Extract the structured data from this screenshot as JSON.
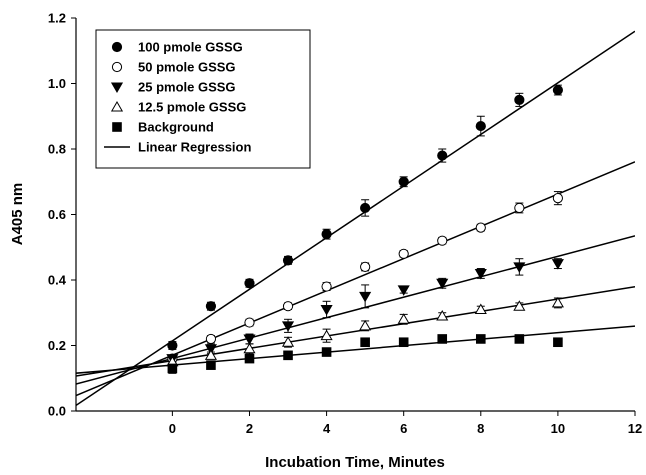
{
  "chart_data": {
    "type": "scatter",
    "xlabel": "Incubation Time, Minutes",
    "ylabel": "A405 nm",
    "xlim": [
      -2.5,
      12
    ],
    "ylim": [
      0.0,
      1.2
    ],
    "xticks": [
      "0",
      "2",
      "4",
      "6",
      "8",
      "10",
      "12"
    ],
    "xtick_values": [
      0,
      2,
      4,
      6,
      8,
      10,
      12
    ],
    "yticks": [
      "0.0",
      "0.2",
      "0.4",
      "0.6",
      "0.8",
      "1.0",
      "1.2"
    ],
    "ytick_values": [
      0.0,
      0.2,
      0.4,
      0.6,
      0.8,
      1.0,
      1.2
    ],
    "grid": false,
    "legend_position": "top-left",
    "x": [
      0,
      1,
      2,
      3,
      4,
      5,
      6,
      7,
      8,
      9,
      10
    ],
    "series": [
      {
        "name": "100 pmole GSSG",
        "marker": "circle-filled",
        "values": [
          0.2,
          0.32,
          0.39,
          0.46,
          0.54,
          0.62,
          0.7,
          0.78,
          0.87,
          0.95,
          0.98
        ],
        "errors": [
          0.012,
          0.012,
          0.012,
          0.012,
          0.015,
          0.025,
          0.015,
          0.02,
          0.03,
          0.02,
          0.015
        ],
        "fit": {
          "slope": 0.0788,
          "intercept": 0.2141
        }
      },
      {
        "name": "50 pmole GSSG",
        "marker": "circle-open",
        "values": [
          0.16,
          0.22,
          0.27,
          0.32,
          0.38,
          0.44,
          0.48,
          0.52,
          0.56,
          0.62,
          0.65
        ],
        "errors": [
          0.01,
          0.01,
          0.01,
          0.01,
          0.012,
          0.012,
          0.01,
          0.01,
          0.01,
          0.015,
          0.02
        ],
        "fit": {
          "slope": 0.0492,
          "intercept": 0.1703
        }
      },
      {
        "name": "25 pmole GSSG",
        "marker": "triangle-down-filled",
        "values": [
          0.16,
          0.19,
          0.22,
          0.26,
          0.31,
          0.35,
          0.37,
          0.39,
          0.42,
          0.44,
          0.45
        ],
        "errors": [
          0.01,
          0.015,
          0.015,
          0.02,
          0.025,
          0.035,
          0.01,
          0.015,
          0.015,
          0.025,
          0.015
        ],
        "fit": {
          "slope": 0.0312,
          "intercept": 0.1603
        }
      },
      {
        "name": "12.5 pmole GSSG",
        "marker": "triangle-up-open",
        "values": [
          0.15,
          0.17,
          0.19,
          0.21,
          0.23,
          0.26,
          0.28,
          0.29,
          0.31,
          0.32,
          0.33
        ],
        "errors": [
          0.01,
          0.01,
          0.015,
          0.015,
          0.02,
          0.015,
          0.015,
          0.01,
          0.01,
          0.01,
          0.015
        ],
        "fit": {
          "slope": 0.0188,
          "intercept": 0.1538
        }
      },
      {
        "name": "Background",
        "marker": "square-filled",
        "values": [
          0.13,
          0.14,
          0.16,
          0.17,
          0.18,
          0.21,
          0.21,
          0.22,
          0.22,
          0.22,
          0.21
        ],
        "errors": [
          0.015,
          0.01,
          0.01,
          0.008,
          0.008,
          0.012,
          0.008,
          0.008,
          0.008,
          0.008,
          0.01
        ],
        "fit": {
          "slope": 0.0099,
          "intercept": 0.1402
        }
      }
    ],
    "legend_extra": "Linear Regression"
  }
}
